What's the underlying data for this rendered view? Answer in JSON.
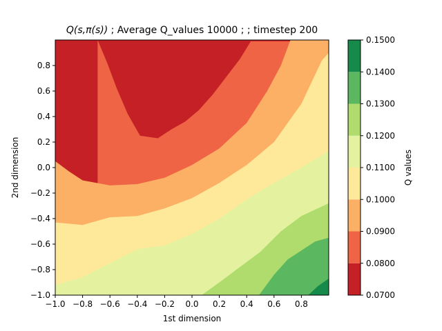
{
  "chart_data": {
    "type": "contour",
    "title": "Q(s,π(s)) ; Average Q_values 10000 ;  ; timestep 200",
    "title_math": "Q(s,π(s))",
    "title_rest": " ; Average Q_values 10000 ;  ; timestep 200",
    "xlabel": "1st dimension",
    "ylabel": "2nd dimension",
    "colorbar_label": "Q values",
    "xlim": [
      -1.0,
      1.0
    ],
    "ylim": [
      -1.0,
      1.0
    ],
    "x_ticks": [
      "−1.0",
      "−0.8",
      "−0.6",
      "−0.4",
      "−0.2",
      "0.0",
      "0.2",
      "0.4",
      "0.6",
      "0.8"
    ],
    "x_tick_values": [
      -1.0,
      -0.8,
      -0.6,
      -0.4,
      -0.2,
      0.0,
      0.2,
      0.4,
      0.6,
      0.8
    ],
    "y_ticks": [
      "−1.0",
      "−0.8",
      "−0.6",
      "−0.4",
      "−0.2",
      "0.0",
      "0.2",
      "0.4",
      "0.6",
      "0.8"
    ],
    "y_tick_values": [
      -1.0,
      -0.8,
      -0.6,
      -0.4,
      -0.2,
      0.0,
      0.2,
      0.4,
      0.6,
      0.8
    ],
    "levels": [
      0.07,
      0.08,
      0.09,
      0.1,
      0.11,
      0.12,
      0.13,
      0.14,
      0.15
    ],
    "level_labels": [
      "0.0700",
      "0.0800",
      "0.0900",
      "0.1000",
      "0.1100",
      "0.1200",
      "0.1300",
      "0.1400",
      "0.1500"
    ],
    "level_colors": [
      "#c42026",
      "#ee6445",
      "#fcb065",
      "#fee99b",
      "#e4f29f",
      "#afdc6d",
      "#5bb760",
      "#168a4a"
    ],
    "contour_boundaries": [
      {
        "lower": 0.07,
        "upper": 0.08,
        "points": [
          [
            -0.69,
            1.0
          ],
          [
            -0.62,
            0.82
          ],
          [
            -0.55,
            0.62
          ],
          [
            -0.47,
            0.42
          ],
          [
            -0.38,
            0.25
          ],
          [
            -0.25,
            0.23
          ],
          [
            -0.15,
            0.3
          ],
          [
            -0.05,
            0.36
          ],
          [
            0.05,
            0.45
          ],
          [
            0.15,
            0.57
          ],
          [
            0.25,
            0.71
          ],
          [
            0.35,
            0.85
          ],
          [
            0.43,
            0.99
          ]
        ]
      },
      {
        "lower": 0.08,
        "upper": 0.09,
        "points": [
          [
            -1.0,
            0.05
          ],
          [
            -0.9,
            -0.03
          ],
          [
            -0.8,
            -0.1
          ],
          [
            -0.6,
            -0.14
          ],
          [
            -0.4,
            -0.13
          ],
          [
            -0.2,
            -0.08
          ],
          [
            0.0,
            0.02
          ],
          [
            0.2,
            0.15
          ],
          [
            0.4,
            0.35
          ],
          [
            0.55,
            0.6
          ],
          [
            0.65,
            0.8
          ],
          [
            0.72,
            1.0
          ]
        ]
      },
      {
        "lower": 0.09,
        "upper": 0.1,
        "points": [
          [
            -1.0,
            -0.43
          ],
          [
            -0.8,
            -0.45
          ],
          [
            -0.6,
            -0.39
          ],
          [
            -0.4,
            -0.38
          ],
          [
            -0.2,
            -0.32
          ],
          [
            0.0,
            -0.24
          ],
          [
            0.2,
            -0.12
          ],
          [
            0.4,
            0.02
          ],
          [
            0.6,
            0.2
          ],
          [
            0.8,
            0.5
          ],
          [
            0.95,
            0.84
          ],
          [
            1.0,
            0.9
          ]
        ]
      },
      {
        "lower": 0.1,
        "upper": 0.11,
        "points": [
          [
            -1.0,
            -0.92
          ],
          [
            -0.8,
            -0.86
          ],
          [
            -0.6,
            -0.75
          ],
          [
            -0.4,
            -0.64
          ],
          [
            -0.2,
            -0.61
          ],
          [
            0.0,
            -0.52
          ],
          [
            0.2,
            -0.4
          ],
          [
            0.4,
            -0.25
          ],
          [
            0.6,
            -0.12
          ],
          [
            0.8,
            0.0
          ],
          [
            1.0,
            0.13
          ]
        ]
      },
      {
        "lower": 0.11,
        "upper": 0.12,
        "points": [
          [
            0.07,
            -1.0
          ],
          [
            0.2,
            -0.9
          ],
          [
            0.35,
            -0.78
          ],
          [
            0.5,
            -0.66
          ],
          [
            0.65,
            -0.5
          ],
          [
            0.8,
            -0.38
          ],
          [
            1.0,
            -0.28
          ]
        ]
      },
      {
        "lower": 0.12,
        "upper": 0.13,
        "points": [
          [
            0.49,
            -1.0
          ],
          [
            0.6,
            -0.84
          ],
          [
            0.7,
            -0.72
          ],
          [
            0.8,
            -0.65
          ],
          [
            0.9,
            -0.58
          ],
          [
            1.0,
            -0.55
          ]
        ]
      },
      {
        "lower": 0.13,
        "upper": 0.14,
        "points": [
          [
            0.85,
            -1.0
          ],
          [
            0.92,
            -0.93
          ],
          [
            1.0,
            -0.87
          ]
        ]
      }
    ]
  }
}
